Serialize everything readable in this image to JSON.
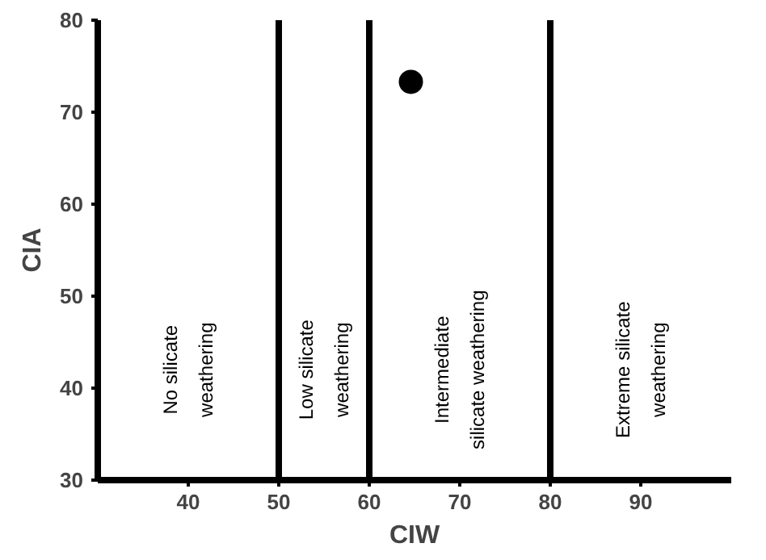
{
  "chart_data": {
    "type": "scatter",
    "xlabel": "CIW",
    "ylabel": "CIA",
    "x": [
      64.6
    ],
    "values": [
      73.3
    ],
    "color": "#000000",
    "marker": "circle",
    "xlim": [
      30,
      100
    ],
    "ylim": [
      30,
      80
    ],
    "xticks": [
      40,
      50,
      60,
      70,
      80,
      90
    ],
    "yticks": [
      30,
      40,
      50,
      60,
      70,
      80
    ],
    "grid": false,
    "ref_lines": [
      {
        "axis": "x",
        "value": 50,
        "color": "#000000"
      },
      {
        "axis": "x",
        "value": 60,
        "color": "#000000"
      },
      {
        "axis": "x",
        "value": 80,
        "color": "#000000"
      }
    ],
    "annotations": [
      "No silicate\nweathering",
      "Low silicate\nweathering",
      "Intermediate\nsilicate weathering",
      "Extreme silicate\nweathering"
    ]
  }
}
